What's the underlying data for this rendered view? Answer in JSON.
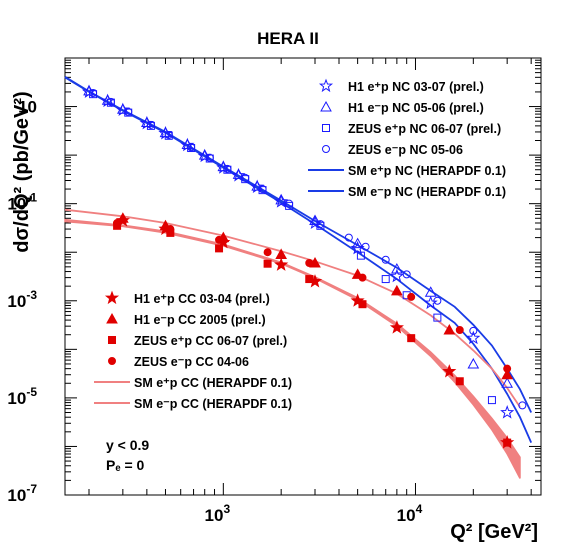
{
  "chart_data": {
    "type": "scatter",
    "title": "HERA II",
    "xlabel": "Q² [GeV²]",
    "ylabel": "dσ/dQ² (pb/GeV²)",
    "xscale": "log",
    "yscale": "log",
    "xlim": [
      150,
      45000
    ],
    "ylim": [
      1e-07,
      100
    ],
    "x_ticks": [
      {
        "value": 1000,
        "label": "10",
        "exp": "3"
      },
      {
        "value": 10000,
        "label": "10",
        "exp": "4"
      }
    ],
    "y_ticks": [
      {
        "value": 1e-07,
        "label": "10",
        "exp": "-7"
      },
      {
        "value": 1e-05,
        "label": "10",
        "exp": "-5"
      },
      {
        "value": 0.001,
        "label": "10",
        "exp": "-3"
      },
      {
        "value": 0.1,
        "label": "10",
        "exp": "-1"
      },
      {
        "value": 10,
        "label": "10",
        "exp": ""
      }
    ],
    "grid": false,
    "legend_nc": [
      {
        "label": "H1 e⁺p NC 03-07 (prel.)",
        "marker": "star-open",
        "color": "#1a1aff"
      },
      {
        "label": "H1 e⁻p NC 05-06 (prel.)",
        "marker": "triangle-open",
        "color": "#1a1aff"
      },
      {
        "label": "ZEUS e⁺p NC 06-07 (prel.)",
        "marker": "square-open",
        "color": "#1a1aff"
      },
      {
        "label": "ZEUS e⁻p NC 05-06",
        "marker": "circle-open",
        "color": "#1a1aff"
      },
      {
        "label": "SM e⁺p NC (HERAPDF 0.1)",
        "marker": "line",
        "color": "#1a3ce6"
      },
      {
        "label": "SM e⁻p NC (HERAPDF 0.1)",
        "marker": "line",
        "color": "#1a3ce6"
      }
    ],
    "legend_cc": [
      {
        "label": "H1 e⁺p CC 03-04 (prel.)",
        "marker": "star-filled",
        "color": "#e00000"
      },
      {
        "label": "H1 e⁻p CC 2005 (prel.)",
        "marker": "triangle-filled",
        "color": "#e00000"
      },
      {
        "label": "ZEUS e⁺p CC 06-07 (prel.)",
        "marker": "square-filled",
        "color": "#e00000"
      },
      {
        "label": "ZEUS e⁻p CC 04-06",
        "marker": "circle-filled",
        "color": "#e00000"
      },
      {
        "label": "SM e⁺p CC (HERAPDF 0.1)",
        "marker": "line",
        "color": "#f08080"
      },
      {
        "label": "SM e⁻p CC (HERAPDF 0.1)",
        "marker": "line",
        "color": "#f08080"
      }
    ],
    "notes": [
      "y < 0.9",
      "Pₑ = 0"
    ],
    "series": [
      {
        "name": "H1 e⁺p NC 03-07 (prel.)",
        "marker": "star-open",
        "color": "#1a1aff",
        "x": [
          200,
          250,
          300,
          400,
          500,
          650,
          800,
          1000,
          1200,
          1500,
          2000,
          3000,
          5000,
          8000,
          12000,
          20000,
          30000
        ],
        "y": [
          20,
          13,
          8.5,
          4.5,
          2.8,
          1.6,
          0.95,
          0.55,
          0.38,
          0.22,
          0.11,
          0.04,
          0.012,
          0.0032,
          0.0009,
          0.00017,
          5e-06
        ]
      },
      {
        "name": "H1 e⁻p NC 05-06 (prel.)",
        "marker": "triangle-open",
        "color": "#1a1aff",
        "x": [
          200,
          250,
          300,
          400,
          500,
          650,
          800,
          1000,
          1200,
          1500,
          2000,
          3000,
          5000,
          8000,
          12000,
          20000,
          30000
        ],
        "y": [
          21,
          13.5,
          8.8,
          4.7,
          2.9,
          1.65,
          1.0,
          0.58,
          0.4,
          0.23,
          0.12,
          0.045,
          0.015,
          0.0045,
          0.0015,
          5e-05,
          2e-05
        ]
      },
      {
        "name": "ZEUS e⁺p NC 06-07 (prel.)",
        "marker": "square-open",
        "color": "#1a1aff",
        "x": [
          210,
          260,
          320,
          420,
          520,
          680,
          850,
          1050,
          1300,
          1600,
          2200,
          3200,
          5200,
          7000,
          9000,
          13000,
          25000
        ],
        "y": [
          18,
          12,
          7.5,
          4.0,
          2.5,
          1.4,
          0.85,
          0.5,
          0.32,
          0.19,
          0.09,
          0.035,
          0.0085,
          0.0028,
          0.0013,
          0.00045,
          9e-06
        ]
      },
      {
        "name": "ZEUS e⁻p NC 05-06",
        "marker": "circle-open",
        "color": "#1a1aff",
        "x": [
          210,
          260,
          320,
          420,
          520,
          680,
          850,
          1050,
          1300,
          1600,
          2200,
          3200,
          4500,
          5500,
          7000,
          9000,
          13000,
          20000,
          36000
        ],
        "y": [
          19,
          12.5,
          7.8,
          4.2,
          2.6,
          1.45,
          0.88,
          0.52,
          0.34,
          0.2,
          0.1,
          0.038,
          0.02,
          0.013,
          0.007,
          0.0035,
          0.001,
          0.00024,
          7e-06
        ]
      },
      {
        "name": "H1 e⁺p CC 03-04 (prel.)",
        "marker": "star-filled",
        "color": "#e00000",
        "x": [
          300,
          500,
          1000,
          2000,
          3000,
          5000,
          8000,
          15000,
          30000
        ],
        "y": [
          0.045,
          0.03,
          0.016,
          0.0055,
          0.0025,
          0.001,
          0.00028,
          3.5e-05,
          1.2e-06
        ]
      },
      {
        "name": "H1 e⁻p CC 2005 (prel.)",
        "marker": "triangle-filled",
        "color": "#e00000",
        "x": [
          300,
          500,
          1000,
          2000,
          3000,
          5000,
          8000,
          15000,
          30000
        ],
        "y": [
          0.05,
          0.035,
          0.02,
          0.009,
          0.006,
          0.0035,
          0.0016,
          0.00025,
          3e-05
        ]
      },
      {
        "name": "ZEUS e⁺p CC 06-07 (prel.)",
        "marker": "square-filled",
        "color": "#e00000",
        "x": [
          280,
          530,
          950,
          1700,
          2800,
          5300,
          9500,
          17000,
          30000
        ],
        "y": [
          0.035,
          0.025,
          0.012,
          0.0058,
          0.0028,
          0.00085,
          0.00017,
          2.2e-05,
          1.2e-06
        ]
      },
      {
        "name": "ZEUS e⁻p CC 04-06",
        "marker": "circle-filled",
        "color": "#e00000",
        "x": [
          280,
          530,
          950,
          1700,
          2800,
          5300,
          9500,
          17000,
          30000
        ],
        "y": [
          0.04,
          0.03,
          0.018,
          0.01,
          0.006,
          0.003,
          0.0012,
          0.00025,
          4e-05
        ]
      }
    ],
    "curves": [
      {
        "name": "SM e⁺p NC (HERAPDF 0.1)",
        "color": "#1a3ce6",
        "style": "line",
        "x": [
          150,
          200,
          300,
          500,
          1000,
          2000,
          3000,
          5000,
          8000,
          12000,
          16000,
          20000,
          25000,
          30000,
          35000,
          40000
        ],
        "y": [
          40,
          20,
          8.2,
          2.9,
          0.55,
          0.105,
          0.038,
          0.01,
          0.0028,
          0.0008,
          0.00035,
          0.00013,
          4e-05,
          1.2e-05,
          4e-06,
          1.2e-06
        ]
      },
      {
        "name": "SM e⁻p NC (HERAPDF 0.1)",
        "color": "#1a3ce6",
        "style": "line",
        "x": [
          150,
          200,
          300,
          500,
          1000,
          2000,
          3000,
          5000,
          8000,
          12000,
          16000,
          20000,
          25000,
          30000,
          35000,
          40000
        ],
        "y": [
          41,
          20.5,
          8.5,
          3.0,
          0.58,
          0.115,
          0.044,
          0.014,
          0.0048,
          0.0016,
          0.00075,
          0.00032,
          0.00012,
          4e-05,
          1.5e-05,
          5e-06
        ]
      },
      {
        "name": "SM e⁺p CC (HERAPDF 0.1)",
        "color": "#f08080",
        "style": "band",
        "x": [
          150,
          300,
          500,
          1000,
          2000,
          3000,
          5000,
          8000,
          12000,
          16000,
          20000,
          25000,
          30000,
          35000
        ],
        "y": [
          0.045,
          0.035,
          0.026,
          0.014,
          0.006,
          0.003,
          0.0011,
          0.00032,
          8e-05,
          2.5e-05,
          9e-06,
          3e-06,
          1.1e-06,
          4e-07
        ],
        "y_low": [
          0.043,
          0.034,
          0.025,
          0.0135,
          0.0058,
          0.0029,
          0.00104,
          0.0003,
          7.2e-05,
          2.1e-05,
          7.2e-06,
          2.2e-06,
          7e-07,
          2.2e-07
        ],
        "y_high": [
          0.047,
          0.036,
          0.027,
          0.0145,
          0.0062,
          0.0031,
          0.00115,
          0.00034,
          8.8e-05,
          2.9e-05,
          1.08e-05,
          3.8e-06,
          1.5e-06,
          6e-07
        ]
      },
      {
        "name": "SM e⁻p CC (HERAPDF 0.1)",
        "color": "#f08080",
        "style": "line",
        "x": [
          150,
          300,
          500,
          1000,
          2000,
          3000,
          5000,
          8000,
          12000,
          16000,
          20000,
          25000,
          30000,
          35000
        ],
        "y": [
          0.075,
          0.055,
          0.04,
          0.022,
          0.0105,
          0.0065,
          0.0033,
          0.0014,
          0.0005,
          0.00021,
          9.5e-05,
          4e-05,
          1.6e-05,
          6.5e-06
        ]
      }
    ]
  }
}
